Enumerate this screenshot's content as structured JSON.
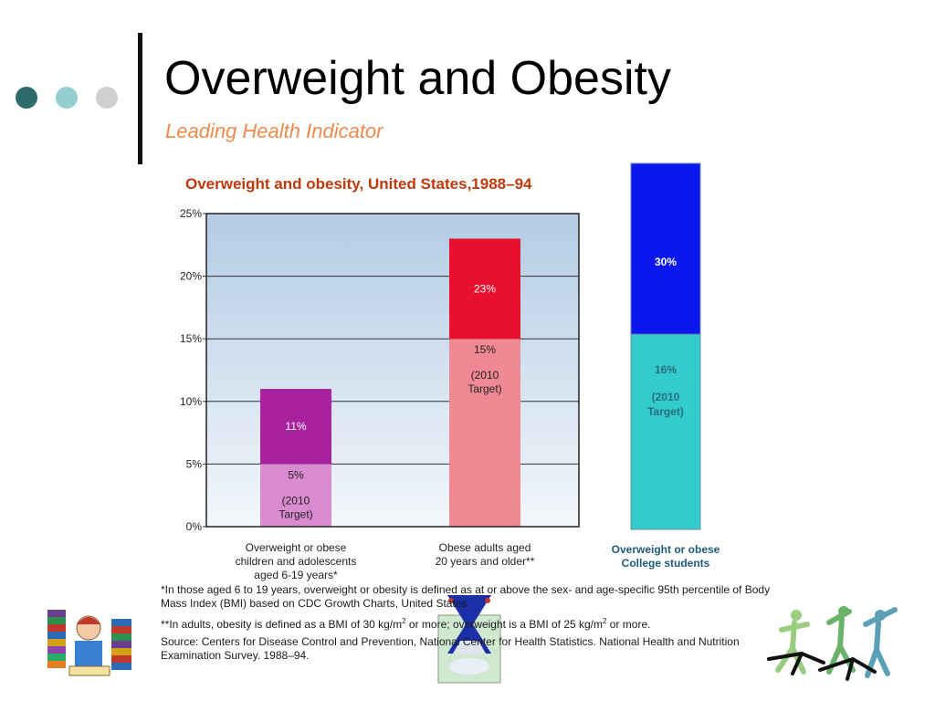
{
  "slide": {
    "title": "Overweight and Obesity",
    "subtitle": "Leading Health Indicator",
    "bullet_colors": [
      "#2e6b6b",
      "#93cfd0",
      "#cfcfcf"
    ]
  },
  "chart_data": [
    {
      "type": "bar",
      "title": "Overweight and obesity, United States,1988–94",
      "ylim": [
        0,
        25
      ],
      "yticks": [
        0,
        5,
        10,
        15,
        20,
        25
      ],
      "ytick_labels": [
        "0%",
        "5%",
        "10%",
        "15%",
        "20%",
        "25%"
      ],
      "grid": true,
      "categories": [
        [
          "Overweight or obese",
          "children and adolescents",
          "aged 6-19 years*"
        ],
        [
          "Obese adults aged",
          "20 years and older**"
        ]
      ],
      "values": [
        11,
        23
      ],
      "targets": [
        5,
        15
      ],
      "value_labels": [
        "11%",
        "23%"
      ],
      "target_labels": [
        [
          "5%",
          "(2010",
          "Target)"
        ],
        [
          "15%",
          "(2010",
          "Target)"
        ]
      ],
      "colors": {
        "value": [
          "#a8229f",
          "#e8102e"
        ],
        "target": [
          "#d98bd2",
          "#f08993"
        ]
      }
    },
    {
      "type": "bar",
      "categories": [
        [
          "Overweight or obese",
          "College students"
        ]
      ],
      "values": [
        30
      ],
      "targets": [
        16
      ],
      "value_labels": [
        "30%"
      ],
      "target_labels": [
        [
          "16%",
          "(2010",
          "Target)"
        ]
      ],
      "colors": {
        "value": [
          "#0a17f0"
        ],
        "target": [
          "#33cccc"
        ]
      }
    }
  ],
  "footnotes": {
    "children": "*In those aged 6 to 19 years, overweight or obesity is defined as at or above the sex- and age-specific 95th percentile of Body Mass Index (BMI) based on CDC Growth Charts, United States.",
    "adults_pre": "**In adults, obesity is defined as a BMI of 30 kg/m",
    "adults_mid": " or more; overweight is a BMI of 25 kg/m",
    "adults_post": " or more.",
    "superscript": "2",
    "source": "Source: Centers for Disease Control and Prevention, National Center for Health Statistics. National Health and Nutrition Examination Survey. 1988–94."
  }
}
